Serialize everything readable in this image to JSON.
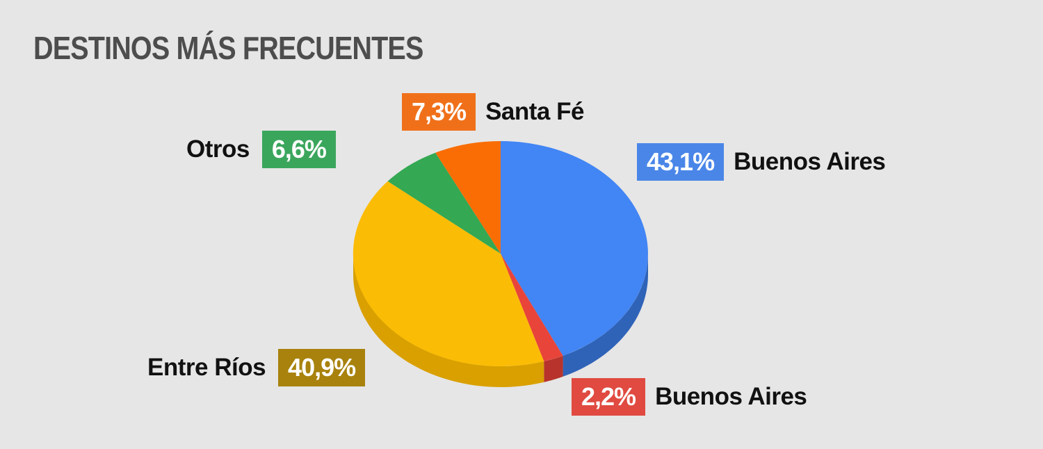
{
  "title": "DESTINOS MÁS FRECUENTES",
  "chart_data": {
    "type": "pie",
    "title": "DESTINOS MÁS FRECUENTES",
    "slices": [
      {
        "label": "Buenos Aires",
        "value_label": "43,1%",
        "value": 43.1,
        "color": "#4285f4",
        "side_color": "#2f63b8"
      },
      {
        "label": "Buenos Aires",
        "value_label": "2,2%",
        "value": 2.2,
        "color": "#e8443a",
        "side_color": "#b8332b"
      },
      {
        "label": "Entre Ríos",
        "value_label": "40,9%",
        "value": 40.9,
        "color": "#fbbc05",
        "side_color": "#d9a000"
      },
      {
        "label": "Otros",
        "value_label": "6,6%",
        "value": 6.6,
        "color": "#34a853",
        "side_color": "#27803f"
      },
      {
        "label": "Santa Fé",
        "value_label": "7,3%",
        "value": 7.3,
        "color": "#f96d04",
        "side_color": "#c95503"
      }
    ],
    "label_colors": {
      "buenos_aires_main": "#4a86e8",
      "buenos_aires_small": "#e04a40",
      "entre_rios": "#a8820d",
      "otros": "#3aa65c",
      "santa_fe": "#f0701a"
    }
  }
}
